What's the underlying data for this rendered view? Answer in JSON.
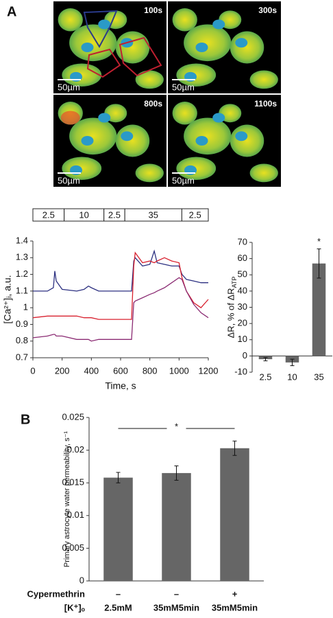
{
  "panel_labels": [
    "A",
    "B"
  ],
  "micrographs": [
    {
      "time": "100s",
      "scale": "50µm"
    },
    {
      "time": "300s",
      "scale": "50µm"
    },
    {
      "time": "800s",
      "scale": "50µm"
    },
    {
      "time": "1100s",
      "scale": "50µm"
    }
  ],
  "chart_data": [
    {
      "type": "line",
      "xlabel": "Time, s",
      "ylabel": "[Ca²⁺]ᵢ, a.u.",
      "x": [
        0,
        100,
        140,
        150,
        160,
        200,
        300,
        350,
        380,
        400,
        450,
        500,
        600,
        675,
        690,
        700,
        750,
        800,
        830,
        850,
        900,
        950,
        1000,
        1020,
        1050,
        1100,
        1150,
        1200
      ],
      "series": [
        {
          "color": "#2b2f80",
          "values": [
            1.1,
            1.1,
            1.12,
            1.22,
            1.16,
            1.11,
            1.1,
            1.11,
            1.13,
            1.12,
            1.1,
            1.1,
            1.1,
            1.1,
            1.28,
            1.3,
            1.25,
            1.26,
            1.34,
            1.27,
            1.26,
            1.25,
            1.25,
            1.2,
            1.17,
            1.16,
            1.15,
            1.15
          ]
        },
        {
          "color": "#d8202e",
          "values": [
            0.94,
            0.95,
            0.95,
            0.95,
            0.95,
            0.95,
            0.95,
            0.94,
            0.94,
            0.94,
            0.93,
            0.93,
            0.93,
            0.93,
            1.25,
            1.33,
            1.27,
            1.28,
            1.27,
            1.28,
            1.3,
            1.28,
            1.27,
            1.18,
            1.1,
            1.03,
            1.0,
            1.05
          ]
        },
        {
          "color": "#8a2a72",
          "values": [
            0.82,
            0.83,
            0.84,
            0.84,
            0.83,
            0.83,
            0.81,
            0.81,
            0.81,
            0.8,
            0.81,
            0.81,
            0.81,
            0.81,
            1.03,
            1.04,
            1.06,
            1.08,
            1.09,
            1.1,
            1.12,
            1.15,
            1.18,
            1.17,
            1.1,
            1.02,
            0.97,
            0.94
          ]
        }
      ],
      "xlim": [
        0,
        1200
      ],
      "xticks": [
        0,
        200,
        400,
        600,
        800,
        1000,
        1200
      ],
      "ylim": [
        0.7,
        1.4
      ],
      "yticks": [
        0.7,
        0.8,
        0.9,
        1,
        1.1,
        1.2,
        1.3,
        1.4
      ],
      "condition_bar": {
        "labels": [
          "2.5",
          "10",
          "2.5",
          "35",
          "2.5"
        ],
        "edges": [
          0,
          214,
          486,
          629,
          1019,
          1200
        ]
      }
    },
    {
      "type": "bar",
      "ylabel": "ΔR, % of ΔR",
      "ylabel_sub": "ATP",
      "categories": [
        "2.5",
        "10",
        "35"
      ],
      "values": [
        -2,
        -4,
        57
      ],
      "errors": [
        1,
        2,
        9
      ],
      "color": "#666666",
      "ylim": [
        -10,
        70
      ],
      "yticks": [
        -10,
        0,
        10,
        20,
        30,
        40,
        50,
        60,
        70
      ],
      "annotation": "*"
    },
    {
      "type": "bar",
      "ylabel": "Primary astrocyte water permeability, s⁻¹",
      "category_rows": [
        {
          "label": "Cypermethrin",
          "values": [
            "–",
            "–",
            "+"
          ]
        },
        {
          "label": "[K⁺]ₒ",
          "values": [
            "2.5mM",
            "35mM5min",
            "35mM5min"
          ]
        }
      ],
      "values": [
        0.0158,
        0.0165,
        0.0203
      ],
      "errors": [
        0.0008,
        0.0011,
        0.0011
      ],
      "color": "#666666",
      "ylim": [
        0,
        0.025
      ],
      "yticks": [
        0,
        0.005,
        0.01,
        0.015,
        0.02,
        0.025
      ],
      "annotation": "*"
    }
  ]
}
